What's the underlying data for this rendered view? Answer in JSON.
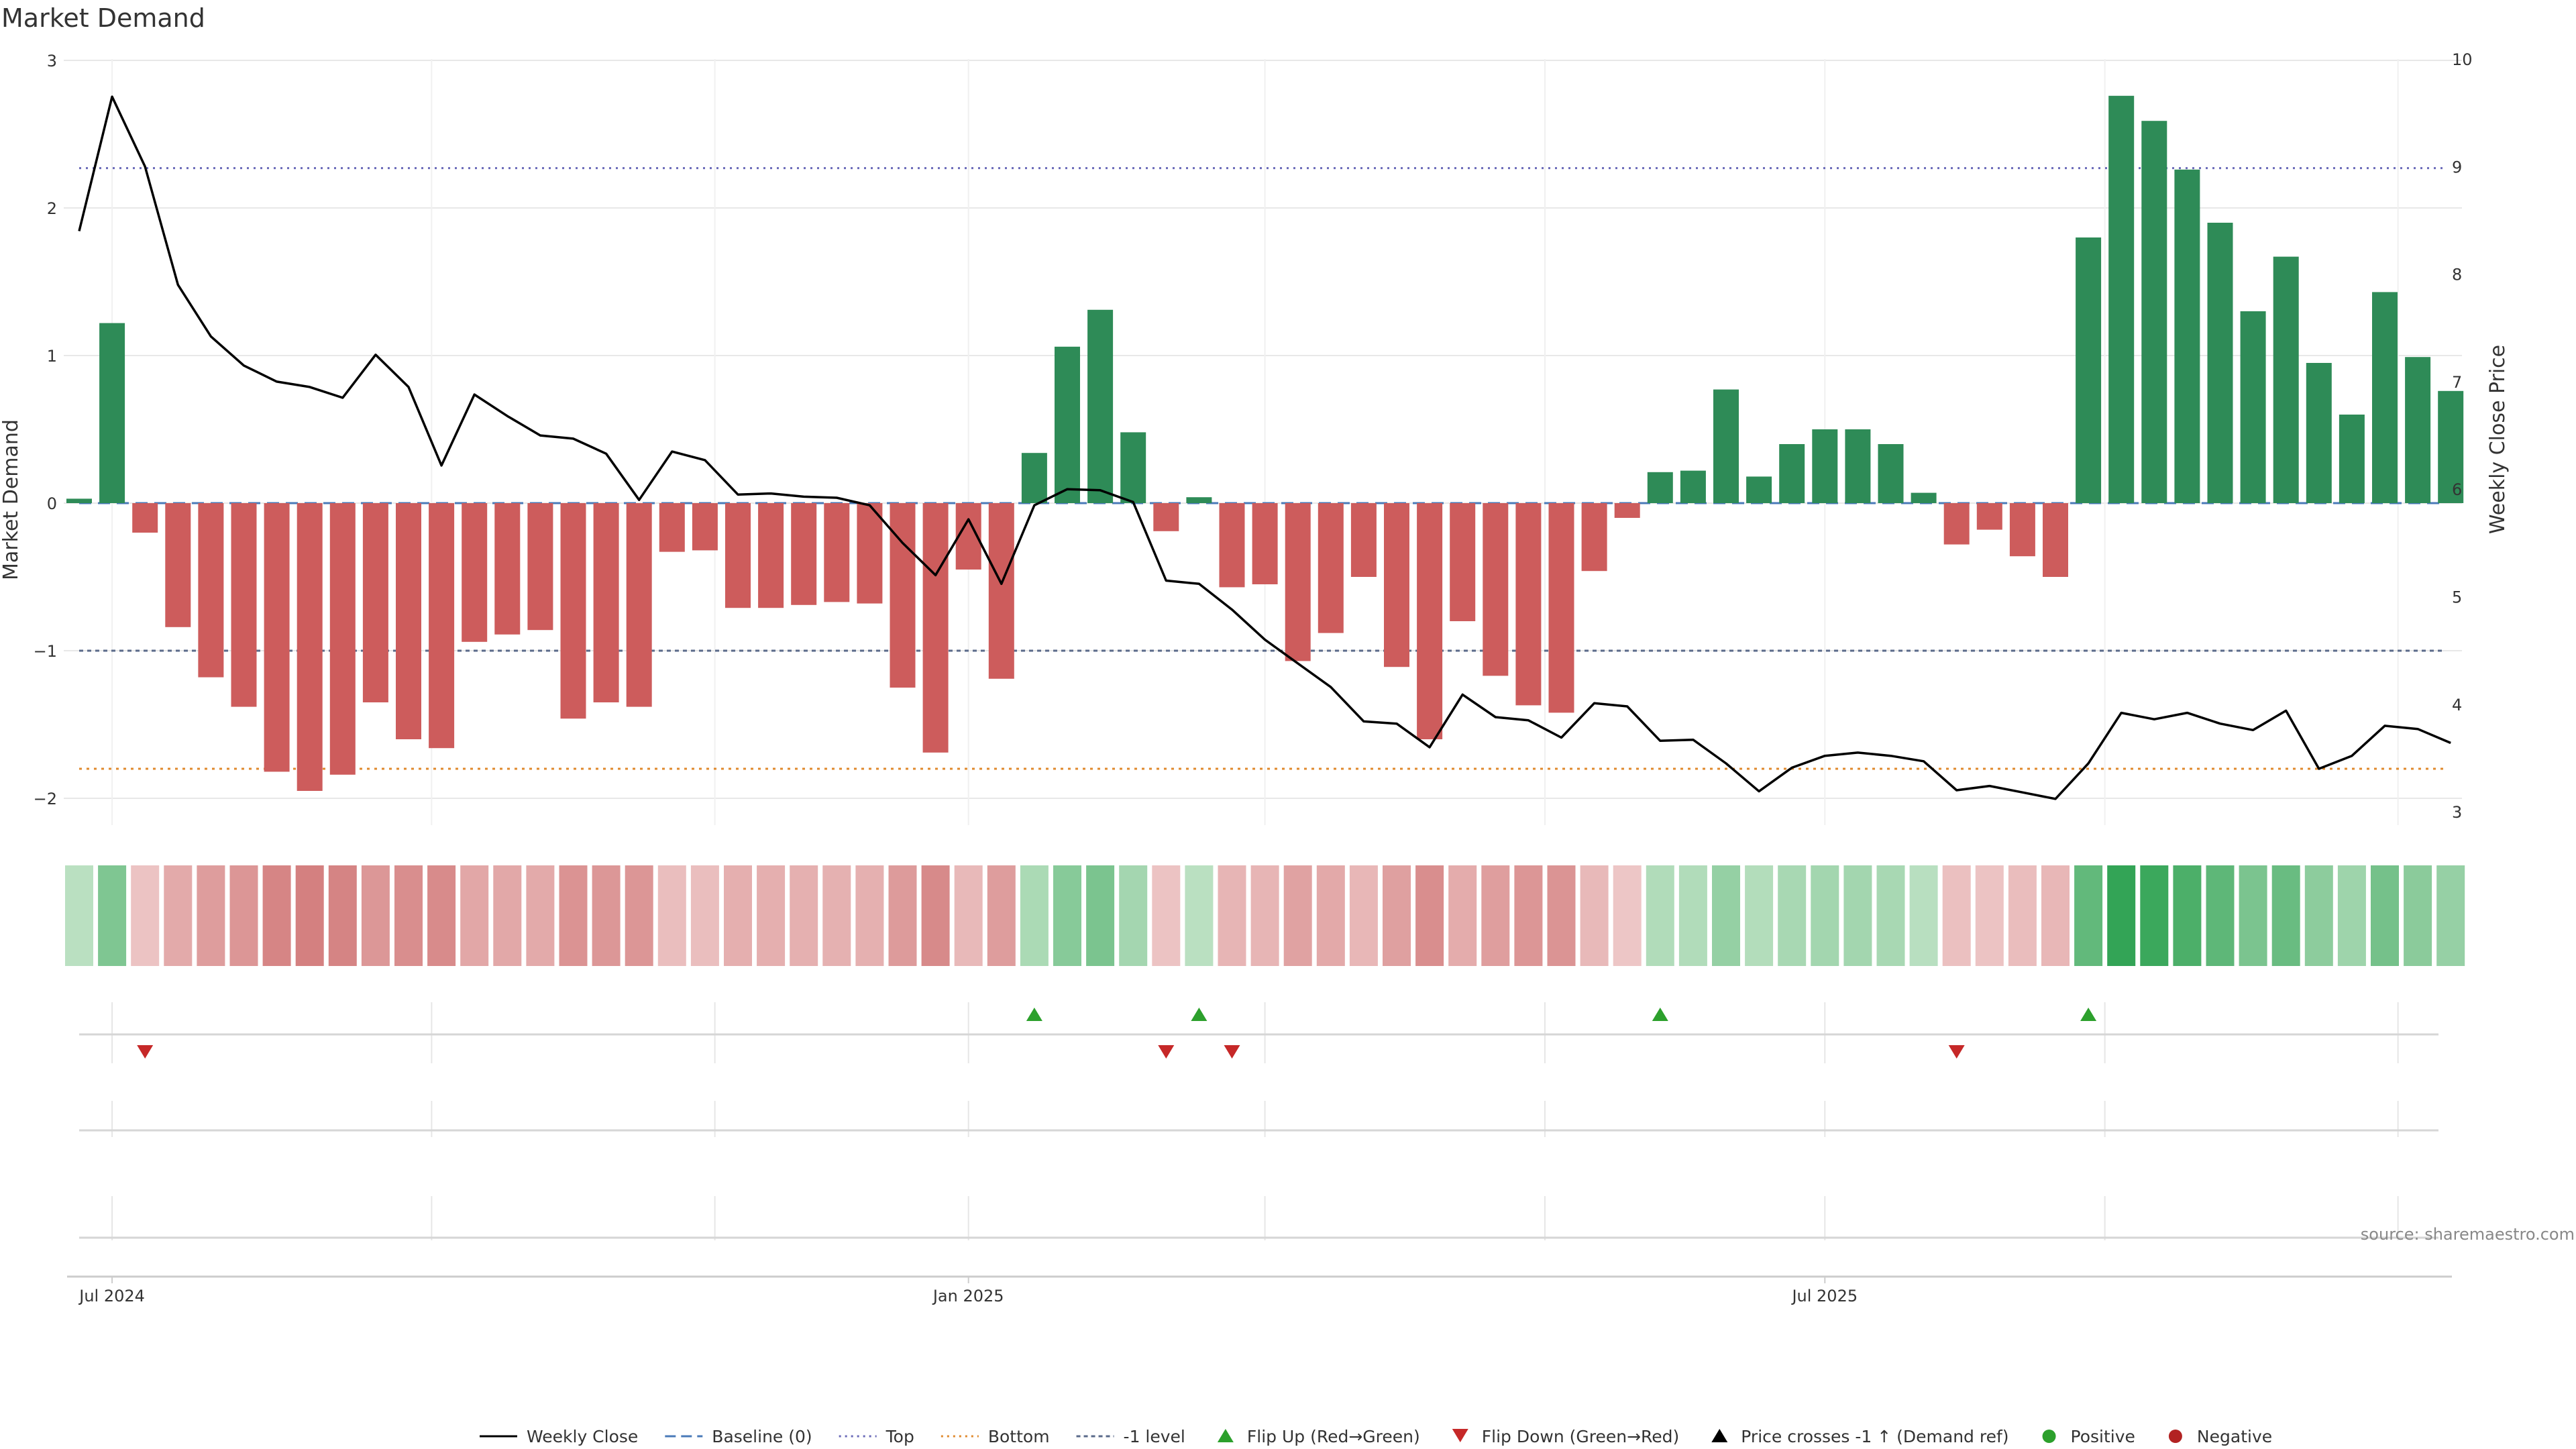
{
  "chart_data": {
    "type": "bar+line",
    "title": "Market Demand",
    "ylabel_left": "Market Demand",
    "ylabel_right": "Weekly Close Price",
    "ylim_left": [
      -2.2,
      3.0
    ],
    "ylim_right": [
      2.9,
      10.0
    ],
    "yticks_left": [
      -2,
      -1,
      0,
      1,
      2,
      3
    ],
    "yticks_left_labels": [
      "−2",
      "−1",
      "0",
      "1",
      "2",
      "3"
    ],
    "yticks_right": [
      3,
      4,
      5,
      6,
      7,
      8,
      9,
      10
    ],
    "yticks_right_labels": [
      "3",
      "4",
      "5",
      "6",
      "7",
      "8",
      "9",
      "10"
    ],
    "x_tick_labels": [
      "Jul 2024",
      "Jan 2025",
      "Jul 2025"
    ],
    "x_tick_week_index": [
      1,
      27,
      53
    ],
    "x_minor_week_index": [
      1,
      10.7,
      19.3,
      27,
      36,
      44.5,
      53,
      61.5,
      70.4
    ],
    "weeks": 72,
    "demand": [
      0.03,
      1.22,
      -0.2,
      -0.84,
      -1.18,
      -1.38,
      -1.82,
      -1.95,
      -1.84,
      -1.35,
      -1.6,
      -1.66,
      -0.94,
      -0.89,
      -0.86,
      -1.46,
      -1.35,
      -1.38,
      -0.33,
      -0.32,
      -0.71,
      -0.71,
      -0.69,
      -0.67,
      -0.68,
      -1.25,
      -1.69,
      -0.45,
      -1.19,
      0.34,
      1.06,
      1.31,
      0.48,
      -0.19,
      0.04,
      -0.57,
      -0.55,
      -1.07,
      -0.88,
      -0.5,
      -1.11,
      -1.6,
      -0.8,
      -1.17,
      -1.37,
      -1.42,
      -0.46,
      -0.1,
      0.21,
      0.22,
      0.77,
      0.18,
      0.4,
      0.5,
      0.5,
      0.4,
      0.07,
      -0.28,
      -0.18,
      -0.36,
      -0.5,
      1.8,
      2.76,
      2.59,
      2.26,
      1.9,
      1.3,
      1.67,
      0.95,
      0.6,
      1.43,
      0.99,
      0.76
    ],
    "weekly_close": [
      8.4,
      9.65,
      9.0,
      7.9,
      7.42,
      7.15,
      7.0,
      6.95,
      6.85,
      7.25,
      6.95,
      6.22,
      6.88,
      6.68,
      6.5,
      6.47,
      6.33,
      5.9,
      6.35,
      6.27,
      5.95,
      5.96,
      5.93,
      5.92,
      5.85,
      5.5,
      5.2,
      5.72,
      5.12,
      5.85,
      6.0,
      5.99,
      5.88,
      5.15,
      5.12,
      4.88,
      4.6,
      4.38,
      4.16,
      3.84,
      3.82,
      3.6,
      4.09,
      3.88,
      3.85,
      3.69,
      4.01,
      3.98,
      3.66,
      3.67,
      3.45,
      3.19,
      3.41,
      3.52,
      3.55,
      3.52,
      3.47,
      3.2,
      3.24,
      3.18,
      3.12,
      3.45,
      3.92,
      3.86,
      3.92,
      3.82,
      3.76,
      3.94,
      3.4,
      3.52,
      3.8,
      3.77,
      3.64
    ],
    "baseline": 0,
    "top_level": 2.27,
    "bottom_level": -1.8,
    "minus_one_level": -1,
    "flip_up_weeks": [
      29,
      34,
      48,
      61
    ],
    "flip_down_weeks": [
      2,
      33,
      35,
      57
    ],
    "price_cross_weeks": [],
    "legend": [
      {
        "label": "Weekly Close",
        "marker": "line-solid"
      },
      {
        "label": "Baseline (0)",
        "marker": "line-dash"
      },
      {
        "label": "Top",
        "marker": "line-dot-blue"
      },
      {
        "label": "Bottom",
        "marker": "line-dot-orange"
      },
      {
        "label": "-1 level",
        "marker": "line-dot-slate"
      },
      {
        "label": "Flip Up (Red→Green)",
        "marker": "triangle-up-green"
      },
      {
        "label": "Flip Down (Green→Red)",
        "marker": "triangle-down-red"
      },
      {
        "label": "Price crosses -1 ↑ (Demand ref)",
        "marker": "triangle-up-black"
      },
      {
        "label": "Positive",
        "marker": "dot-green"
      },
      {
        "label": "Negative",
        "marker": "dot-red"
      }
    ],
    "source": "source: sharemaestro.com"
  },
  "colors": {
    "positive_bar": "#2e8b57",
    "negative_bar": "#cd5c5c",
    "price_line": "#000000",
    "baseline": "#4a7ab8",
    "top_line": "#6a6ab8",
    "bottom_line": "#e08a2e",
    "minus_one_line": "#5a6a8a",
    "flip_up": "#2ca02c",
    "flip_down": "#c62828",
    "positive_dot": "#2ca02c",
    "negative_dot": "#b22222",
    "grid": "#e8e8e8"
  }
}
